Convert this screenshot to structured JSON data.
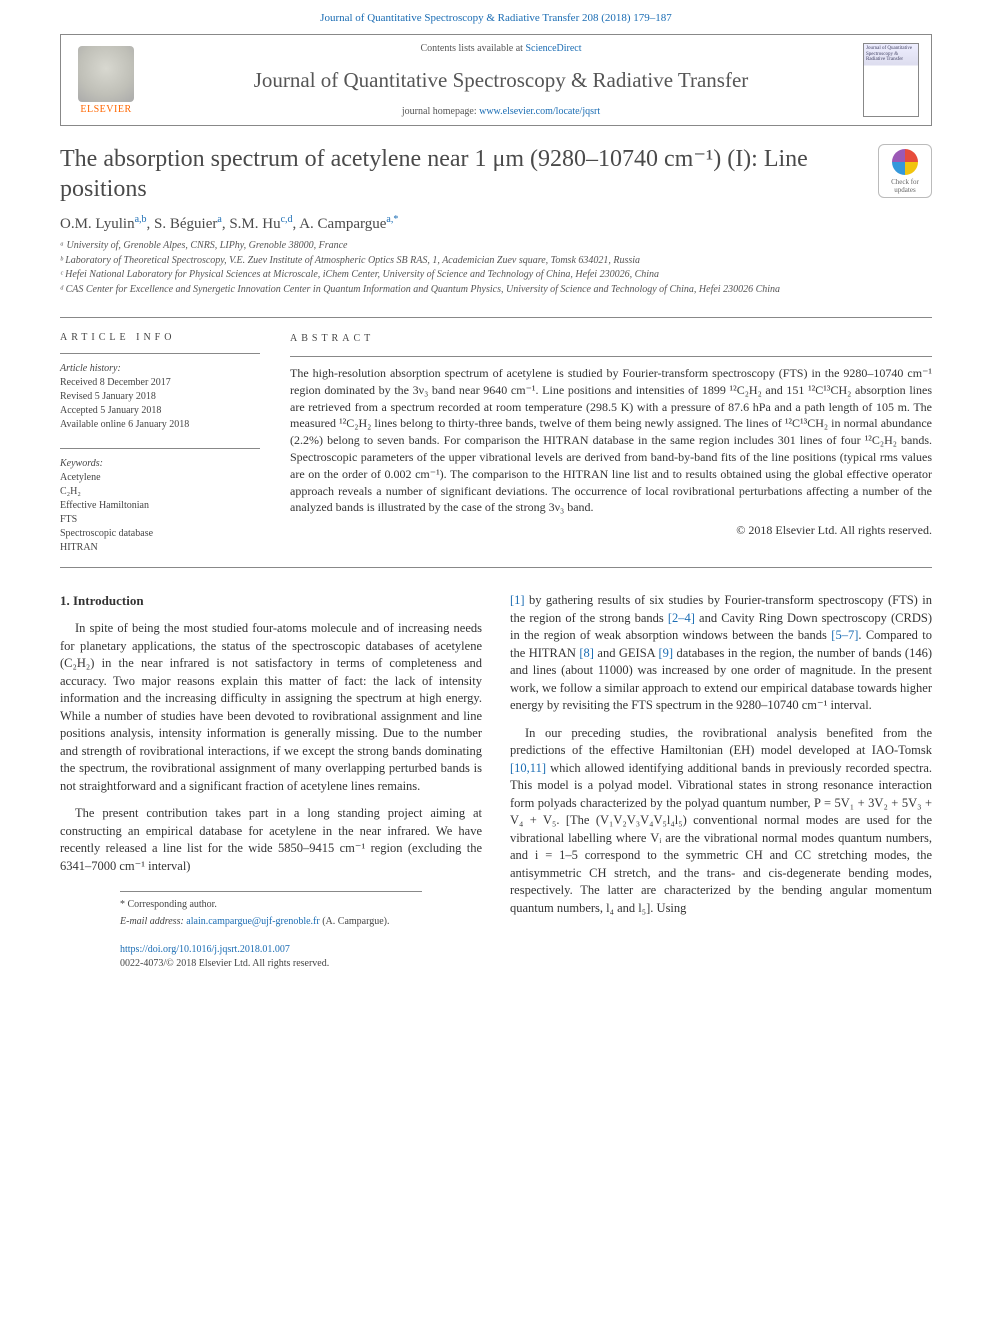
{
  "header": {
    "citation": "Journal of Quantitative Spectroscopy & Radiative Transfer 208 (2018) 179–187",
    "contents_prefix": "Contents lists available at ",
    "contents_link": "ScienceDirect",
    "journal_name": "Journal of Quantitative Spectroscopy & Radiative Transfer",
    "homepage_prefix": "journal homepage: ",
    "homepage_link": "www.elsevier.com/locate/jqsrt",
    "elsevier_label": "ELSEVIER",
    "cover_thumb_text": "Journal of Quantitative Spectroscopy & Radiative Transfer"
  },
  "title": "The absorption spectrum of acetylene near 1 μm (9280–10740 cm⁻¹) (I): Line positions",
  "crossmark": {
    "line1": "Check for",
    "line2": "updates"
  },
  "authors_html": "O.M. Lyulin<sup>a,b</sup>, S. Béguier<sup>a</sup>, S.M. Hu<sup>c,d</sup>, A. Campargue<sup>a,*</sup>",
  "affiliations": [
    "ᵃ University of, Grenoble Alpes, CNRS, LIPhy, Grenoble 38000, France",
    "ᵇ Laboratory of Theoretical Spectroscopy, V.E. Zuev Institute of Atmospheric Optics SB RAS, 1, Academician Zuev square, Tomsk 634021, Russia",
    "ᶜ Hefei National Laboratory for Physical Sciences at Microscale, iChem Center, University of Science and Technology of China, Hefei 230026, China",
    "ᵈ CAS Center for Excellence and Synergetic Innovation Center in Quantum Information and Quantum Physics, University of Science and Technology of China, Hefei 230026 China"
  ],
  "article_info": {
    "label": "article info",
    "history_head": "Article history:",
    "history": [
      "Received 8 December 2017",
      "Revised 5 January 2018",
      "Accepted 5 January 2018",
      "Available online 6 January 2018"
    ],
    "keywords_head": "Keywords:",
    "keywords": [
      "Acetylene",
      "C₂H₂",
      "Effective Hamiltonian",
      "FTS",
      "Spectroscopic database",
      "HITRAN"
    ]
  },
  "abstract": {
    "label": "abstract",
    "text": "The high-resolution absorption spectrum of acetylene is studied by Fourier-transform spectroscopy (FTS) in the 9280–10740 cm⁻¹ region dominated by the 3ν₃ band near 9640 cm⁻¹. Line positions and intensities of 1899 ¹²C₂H₂ and 151 ¹²C¹³CH₂ absorption lines are retrieved from a spectrum recorded at room temperature (298.5 K) with a pressure of 87.6 hPa and a path length of 105 m. The measured ¹²C₂H₂ lines belong to thirty-three bands, twelve of them being newly assigned. The lines of ¹²C¹³CH₂ in normal abundance (2.2%) belong to seven bands. For comparison the HITRAN database in the same region includes 301 lines of four ¹²C₂H₂ bands. Spectroscopic parameters of the upper vibrational levels are derived from band-by-band fits of the line positions (typical rms values are on the order of 0.002 cm⁻¹). The comparison to the HITRAN line list and to results obtained using the global effective operator approach reveals a number of significant deviations. The occurrence of local rovibrational perturbations affecting a number of the analyzed bands is illustrated by the case of the strong 3ν₃ band.",
    "copyright": "© 2018 Elsevier Ltd. All rights reserved."
  },
  "body": {
    "section_heading": "1. Introduction",
    "col1": [
      "In spite of being the most studied four-atoms molecule and of increasing needs for planetary applications, the status of the spectroscopic databases of acetylene (C₂H₂) in the near infrared is not satisfactory in terms of completeness and accuracy. Two major reasons explain this matter of fact: the lack of intensity information and the increasing difficulty in assigning the spectrum at high energy. While a number of studies have been devoted to rovibrational assignment and line positions analysis, intensity information is generally missing. Due to the number and strength of rovibrational interactions, if we except the strong bands dominating the spectrum, the rovibrational assignment of many overlapping perturbed bands is not straightforward and a significant fraction of acetylene lines remains.",
      "The present contribution takes part in a long standing project aiming at constructing an empirical database for acetylene in the near infrared. We have recently released a line list for the wide 5850–9415 cm⁻¹ region (excluding the 6341–7000 cm⁻¹ interval)"
    ],
    "col2": [
      "[1] by gathering results of six studies by Fourier-transform spectroscopy (FTS) in the region of the strong bands [2–4] and Cavity Ring Down spectroscopy (CRDS) in the region of weak absorption windows between the bands [5–7]. Compared to the HITRAN [8] and GEISA [9] databases in the region, the number of bands (146) and lines (about 11000) was increased by one order of magnitude. In the present work, we follow a similar approach to extend our empirical database towards higher energy by revisiting the FTS spectrum in the 9280–10740 cm⁻¹ interval.",
      "In our preceding studies, the rovibrational analysis benefited from the predictions of the effective Hamiltonian (EH) model developed at IAO-Tomsk [10,11] which allowed identifying additional bands in previously recorded spectra. This model is a polyad model. Vibrational states in strong resonance interaction form polyads characterized by the polyad quantum number, P = 5V₁ + 3V₂ + 5V₃ + V₄ + V₅. [The (V₁V₂V₃V₄V₅l₄l₅) conventional normal modes are used for the vibrational labelling where Vᵢ are the vibrational normal modes quantum numbers, and i = 1–5 correspond to the symmetric CH and CC stretching modes, the antisymmetric CH stretch, and the trans- and cis-degenerate bending modes, respectively. The latter are characterized by the bending angular momentum quantum numbers, l₄ and l₅]. Using"
    ]
  },
  "footer": {
    "corr_label": "* Corresponding author.",
    "email_label": "E-mail address: ",
    "email": "alain.campargue@ujf-grenoble.fr",
    "email_suffix": " (A. Campargue).",
    "doi": "https://doi.org/10.1016/j.jqsrt.2018.01.007",
    "issn_line": "0022-4073/© 2018 Elsevier Ltd. All rights reserved."
  },
  "colors": {
    "link": "#1a6cb3",
    "text": "#333333",
    "orange": "#ff6600"
  }
}
